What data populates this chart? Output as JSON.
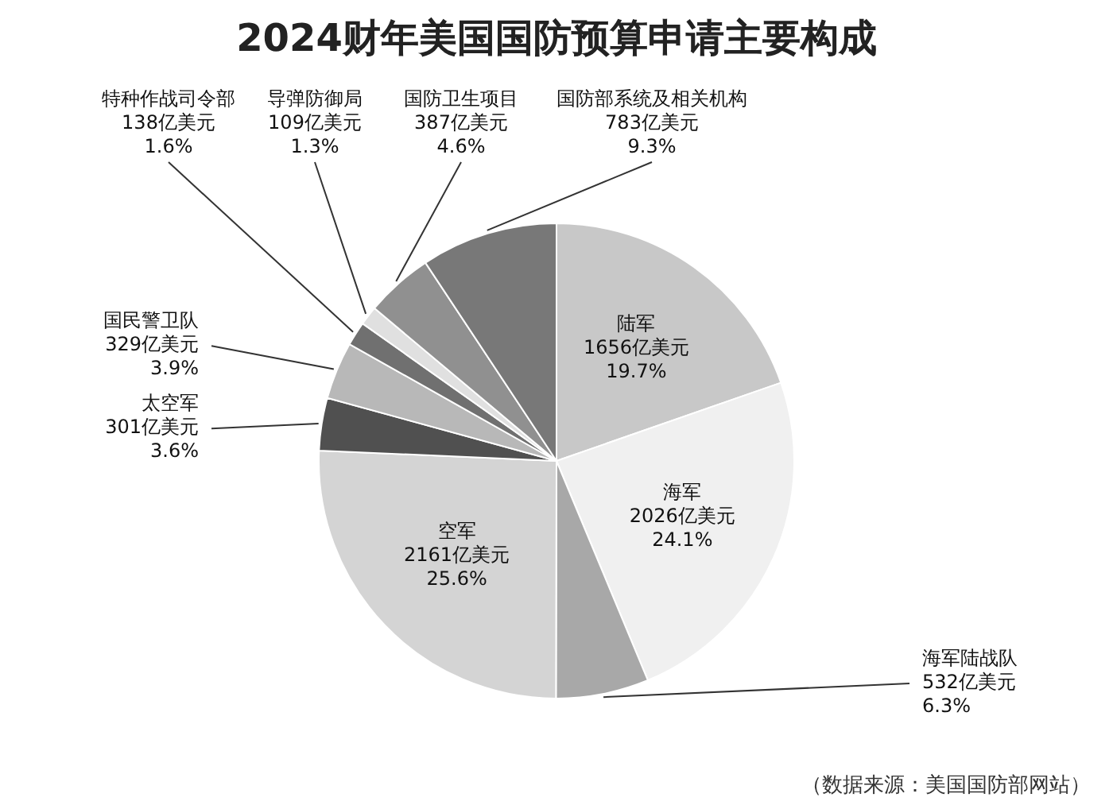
{
  "chart_data": {
    "type": "pie",
    "title": "2024财年美国国防预算申请主要构成",
    "categories": [
      "陆军",
      "海军",
      "海军陆战队",
      "空军",
      "太空军",
      "国民警卫队",
      "特种作战司令部",
      "导弹防御局",
      "国防卫生项目",
      "国防部系统及相关机构"
    ],
    "values": [
      1656,
      2026,
      532,
      2161,
      301,
      329,
      138,
      109,
      387,
      783
    ],
    "value_labels": [
      "1656亿美元\n19.7%",
      "2026亿美元\n24.1%",
      "532亿美元\n6.3%",
      "2161亿美元\n25.6%",
      "301亿美元\n3.6%",
      "329亿美元\n3.9%",
      "138亿美元\n1.6%",
      "109亿美元\n1.3%",
      "387亿美元\n4.6%",
      "783亿美元\n9.3%"
    ],
    "colors": [
      "#c8c8c8",
      "#f0f0f0",
      "#a8a8a8",
      "#d4d4d4",
      "#505050",
      "#b8b8b8",
      "#707070",
      "#e0e0e0",
      "#909090",
      "#787878"
    ],
    "annotations": [
      "（数据来源：美国国防部网站）"
    ],
    "legend": false
  }
}
